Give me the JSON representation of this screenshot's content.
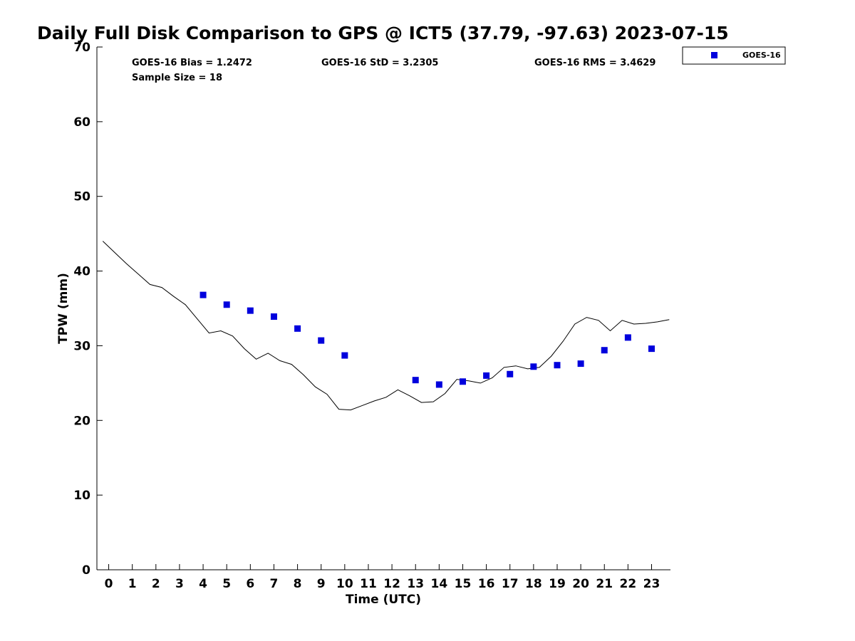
{
  "chart_data": {
    "type": "scatter",
    "title": "Daily Full Disk Comparison to GPS @ ICT5 (37.79, -97.63) 2023-07-15",
    "xlabel": "Time (UTC)",
    "ylabel": "TPW (mm)",
    "xlim": [
      -0.5,
      23.8
    ],
    "ylim": [
      0,
      70
    ],
    "x_ticks": [
      0,
      1,
      2,
      3,
      4,
      5,
      6,
      7,
      8,
      9,
      10,
      11,
      12,
      13,
      14,
      15,
      16,
      17,
      18,
      19,
      20,
      21,
      22,
      23
    ],
    "x_tick_labels": [
      "0",
      "1",
      "2",
      "3",
      "4",
      "5",
      "6",
      "7",
      "8",
      "9",
      "10",
      "11",
      "12",
      "13",
      "14",
      "15",
      "16",
      "17",
      "18",
      "19",
      "20",
      "21",
      "22",
      "23"
    ],
    "y_ticks": [
      0,
      10,
      20,
      30,
      40,
      50,
      60,
      70
    ],
    "y_tick_labels": [
      "0",
      "10",
      "20",
      "30",
      "40",
      "50",
      "60",
      "70"
    ],
    "grid": false,
    "legend_position": "outside-top-right",
    "stats": {
      "bias": "GOES-16 Bias = 1.2472",
      "std": "GOES-16 StD = 3.2305",
      "rms": "GOES-16 RMS = 3.4629",
      "sample": "Sample Size = 18"
    },
    "series": [
      {
        "name": "GOES-16",
        "kind": "scatter",
        "marker": "square",
        "color": "#0000dd",
        "x": [
          4,
          5,
          6,
          7,
          8,
          9,
          10,
          13,
          14,
          15,
          16,
          17,
          18,
          19,
          20,
          21,
          22,
          23
        ],
        "y": [
          36.8,
          35.5,
          34.7,
          33.9,
          32.3,
          30.7,
          28.7,
          25.4,
          24.8,
          25.2,
          26.0,
          26.2,
          27.2,
          27.4,
          27.6,
          29.4,
          31.1,
          29.6
        ]
      },
      {
        "kind": "line",
        "color": "#000000",
        "x": [
          -0.25,
          0.25,
          0.75,
          1.25,
          1.75,
          2.25,
          2.75,
          3.25,
          3.75,
          4.25,
          4.75,
          5.25,
          5.75,
          6.25,
          6.75,
          7.25,
          7.75,
          8.25,
          8.75,
          9.25,
          9.75,
          10.25,
          10.75,
          11.25,
          11.75,
          12.25,
          12.75,
          13.25,
          13.75,
          14.25,
          14.75,
          15.25,
          15.75,
          16.25,
          16.75,
          17.25,
          17.75,
          18.25,
          18.75,
          19.25,
          19.75,
          20.25,
          20.75,
          21.25,
          21.75,
          22.25,
          22.75,
          23.25,
          23.75
        ],
        "y": [
          44.0,
          42.5,
          41.0,
          39.6,
          38.2,
          37.8,
          36.6,
          35.5,
          33.6,
          31.7,
          32.0,
          31.3,
          29.6,
          28.2,
          29.0,
          28.0,
          27.5,
          26.1,
          24.5,
          23.5,
          21.5,
          21.4,
          22.0,
          22.6,
          23.1,
          24.1,
          23.3,
          22.4,
          22.5,
          23.6,
          25.5,
          25.3,
          25.0,
          25.7,
          27.1,
          27.3,
          26.9,
          27.1,
          28.6,
          30.6,
          32.9,
          33.8,
          33.4,
          32.0,
          33.4,
          32.9,
          33.0,
          33.2,
          33.5
        ]
      }
    ]
  }
}
